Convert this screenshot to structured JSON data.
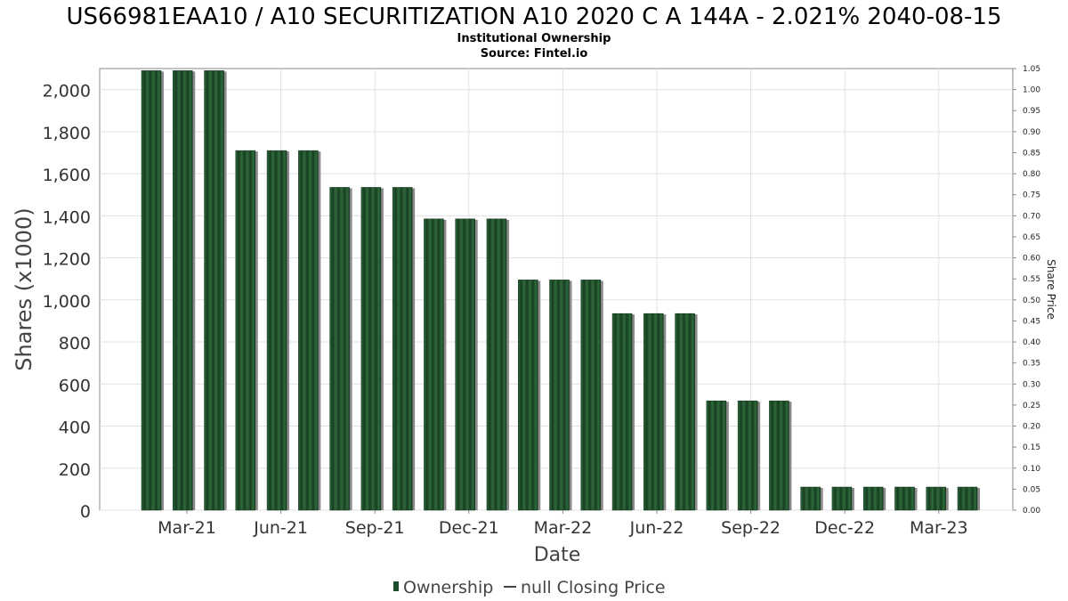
{
  "chart_data": {
    "type": "bar",
    "title": "US66981EAA10 / A10 SECURITIZATION A10 2020 C A 144A - 2.021% 2040-08-15",
    "subtitle": "Institutional Ownership",
    "source": "Source: Fintel.io",
    "xlabel": "Date",
    "ylabel": "Shares (x1000)",
    "y2label": "Share Price",
    "ylim": [
      0,
      2100
    ],
    "y2lim": [
      0,
      1.05
    ],
    "yticks": [
      "0",
      "200",
      "400",
      "600",
      "800",
      "1,000",
      "1,200",
      "1,400",
      "1,600",
      "1,800",
      "2,000"
    ],
    "y2ticks": [
      "0.00",
      "0.05",
      "0.10",
      "0.15",
      "0.20",
      "0.25",
      "0.30",
      "0.35",
      "0.40",
      "0.45",
      "0.50",
      "0.55",
      "0.60",
      "0.65",
      "0.70",
      "0.75",
      "0.80",
      "0.85",
      "0.90",
      "0.95",
      "1.00",
      "1.05"
    ],
    "xticks": [
      "Mar-21",
      "Jun-21",
      "Sep-21",
      "Dec-21",
      "Mar-22",
      "Jun-22",
      "Sep-22",
      "Dec-22",
      "Mar-23"
    ],
    "values": [
      2090,
      2090,
      2090,
      1710,
      1710,
      1710,
      1535,
      1535,
      1535,
      1385,
      1385,
      1385,
      1095,
      1095,
      1095,
      935,
      935,
      935,
      520,
      520,
      520,
      110,
      110,
      110,
      110,
      110,
      110
    ],
    "legend": {
      "position": "bottom",
      "items": [
        "Ownership",
        "null Closing Price"
      ]
    },
    "grid": true,
    "colors": {
      "bar": "#1e4d2b",
      "bar_dark": "#0f2d18",
      "bar_shadow": "#8a8a8a",
      "grid": "#e0e0e0",
      "axis": "#888888"
    }
  }
}
